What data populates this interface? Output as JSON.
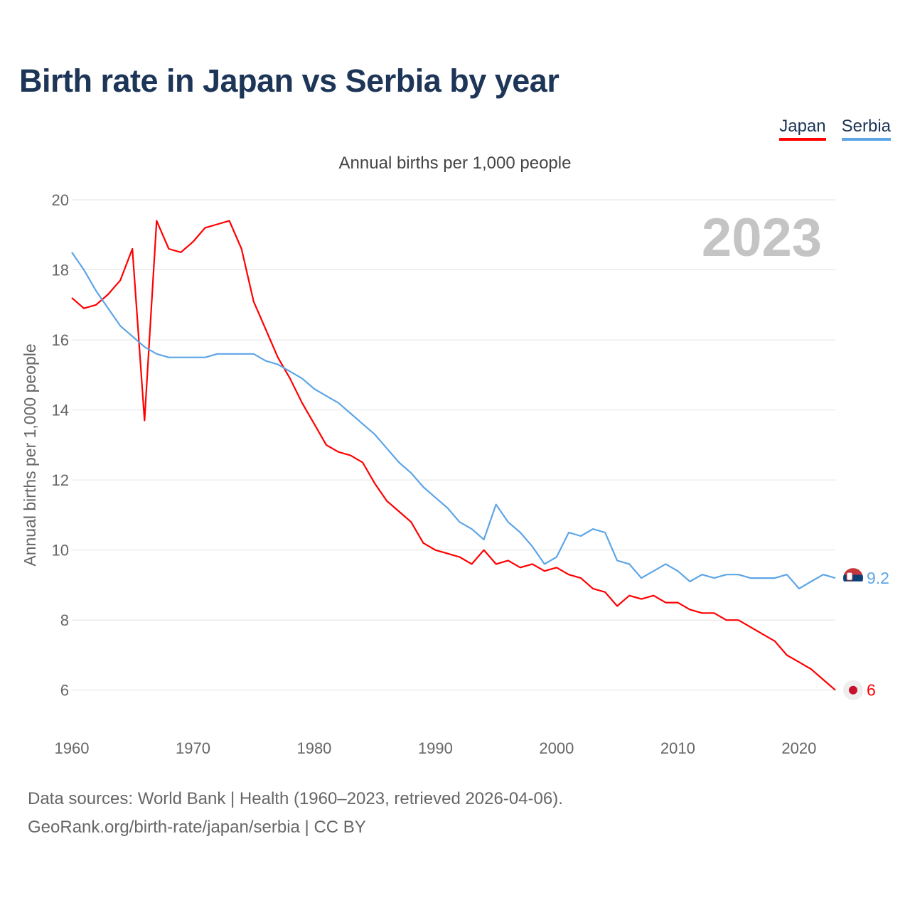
{
  "title": "Birth rate in Japan vs Serbia by year",
  "subtitle": "Annual births per 1,000 people",
  "legend": [
    {
      "name": "Japan",
      "color": "#ff0000"
    },
    {
      "name": "Serbia",
      "color": "#5da5e6"
    }
  ],
  "year_label": "2023",
  "source": {
    "line1": "Data sources: World Bank | Health (1960–2023, retrieved 2026-04-06).",
    "line2": "GeoRank.org/birth-rate/japan/serbia | CC BY"
  },
  "chart_data": {
    "type": "line",
    "title": "Birth rate in Japan vs Serbia by year",
    "xlabel": "",
    "ylabel": "Annual births per 1,000 people",
    "xlim": [
      1960,
      2023
    ],
    "ylim": [
      5,
      20
    ],
    "x_ticks": [
      1960,
      1970,
      1980,
      1990,
      2000,
      2010,
      2020
    ],
    "y_ticks": [
      6,
      8,
      10,
      12,
      14,
      16,
      18,
      20
    ],
    "grid": true,
    "legend_position": "top-right",
    "x": [
      1960,
      1961,
      1962,
      1963,
      1964,
      1965,
      1966,
      1967,
      1968,
      1969,
      1970,
      1971,
      1972,
      1973,
      1974,
      1975,
      1976,
      1977,
      1978,
      1979,
      1980,
      1981,
      1982,
      1983,
      1984,
      1985,
      1986,
      1987,
      1988,
      1989,
      1990,
      1991,
      1992,
      1993,
      1994,
      1995,
      1996,
      1997,
      1998,
      1999,
      2000,
      2001,
      2002,
      2003,
      2004,
      2005,
      2006,
      2007,
      2008,
      2009,
      2010,
      2011,
      2012,
      2013,
      2014,
      2015,
      2016,
      2017,
      2018,
      2019,
      2020,
      2021,
      2022,
      2023
    ],
    "series": [
      {
        "name": "Japan",
        "color": "#ff0000",
        "end_label": "6",
        "values": [
          17.2,
          16.9,
          17.0,
          17.3,
          17.7,
          18.6,
          13.7,
          19.4,
          18.6,
          18.5,
          18.8,
          19.2,
          19.3,
          19.4,
          18.6,
          17.1,
          16.3,
          15.5,
          14.9,
          14.2,
          13.6,
          13.0,
          12.8,
          12.7,
          12.5,
          11.9,
          11.4,
          11.1,
          10.8,
          10.2,
          10.0,
          9.9,
          9.8,
          9.6,
          10.0,
          9.6,
          9.7,
          9.5,
          9.6,
          9.4,
          9.5,
          9.3,
          9.2,
          8.9,
          8.8,
          8.4,
          8.7,
          8.6,
          8.7,
          8.5,
          8.5,
          8.3,
          8.2,
          8.2,
          8.0,
          8.0,
          7.8,
          7.6,
          7.4,
          7.0,
          6.8,
          6.6,
          6.3,
          6.0
        ]
      },
      {
        "name": "Serbia",
        "color": "#5da5e6",
        "end_label": "9.2",
        "values": [
          18.5,
          18.0,
          17.4,
          16.9,
          16.4,
          16.1,
          15.8,
          15.6,
          15.5,
          15.5,
          15.5,
          15.5,
          15.6,
          15.6,
          15.6,
          15.6,
          15.4,
          15.3,
          15.1,
          14.9,
          14.6,
          14.4,
          14.2,
          13.9,
          13.6,
          13.3,
          12.9,
          12.5,
          12.2,
          11.8,
          11.5,
          11.2,
          10.8,
          10.6,
          10.3,
          11.3,
          10.8,
          10.5,
          10.1,
          9.6,
          9.8,
          10.5,
          10.4,
          10.6,
          10.5,
          9.7,
          9.6,
          9.2,
          9.4,
          9.6,
          9.4,
          9.1,
          9.3,
          9.2,
          9.3,
          9.3,
          9.2,
          9.2,
          9.2,
          9.3,
          8.9,
          9.1,
          9.3,
          9.2
        ]
      }
    ]
  }
}
